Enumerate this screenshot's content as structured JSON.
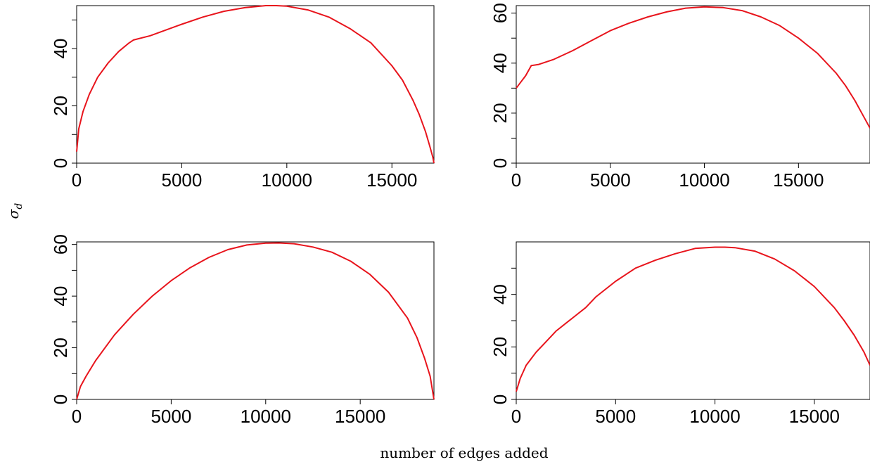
{
  "figure": {
    "ylabel": "σd",
    "ylabel_sub": "d",
    "xlabel": "number of edges added"
  },
  "series_color": "#e8141c",
  "chart_data": [
    {
      "type": "line",
      "panel": "top-left",
      "xlim": [
        0,
        17000
      ],
      "ylim": [
        0,
        55
      ],
      "x_ticks": [
        0,
        5000,
        10000,
        15000
      ],
      "y_ticks_labeled": [
        0,
        20,
        40
      ],
      "y_ticks_minor": [
        10,
        30,
        50
      ],
      "series": [
        {
          "x": [
            0,
            100,
            300,
            600,
            1000,
            1500,
            2000,
            2500,
            2700,
            3500,
            5000,
            6000,
            7000,
            8000,
            9000,
            9500,
            10000,
            11000,
            12000,
            13000,
            14000,
            15000,
            15500,
            16000,
            16300,
            16600,
            16800,
            16950,
            17000
          ],
          "y": [
            4,
            12,
            18,
            24,
            30,
            35,
            39,
            42,
            43,
            44.5,
            48.5,
            51,
            53,
            54.3,
            55,
            55,
            54.8,
            53.5,
            51,
            47,
            42,
            34,
            29,
            22,
            17,
            11,
            6,
            2,
            0
          ]
        }
      ]
    },
    {
      "type": "line",
      "panel": "top-right",
      "xlim": [
        0,
        18800
      ],
      "ylim": [
        0,
        63
      ],
      "x_ticks": [
        0,
        5000,
        10000,
        15000
      ],
      "y_ticks_labeled": [
        0,
        20,
        40,
        60
      ],
      "y_ticks_minor": [
        10,
        30,
        50
      ],
      "series": [
        {
          "x": [
            0,
            200,
            500,
            800,
            1200,
            2000,
            3000,
            4000,
            5000,
            6000,
            7000,
            8000,
            9000,
            10000,
            11000,
            12000,
            13000,
            14000,
            15000,
            16000,
            17000,
            17500,
            18000,
            18400,
            18800
          ],
          "y": [
            30,
            32,
            35,
            39,
            39.5,
            41.5,
            45,
            49,
            53,
            56,
            58.5,
            60.5,
            62,
            62.5,
            62.2,
            61,
            58.5,
            55,
            50,
            44,
            36,
            31,
            25,
            19.5,
            14
          ]
        }
      ]
    },
    {
      "type": "line",
      "panel": "bottom-left",
      "xlim": [
        0,
        18900
      ],
      "ylim": [
        0,
        61
      ],
      "x_ticks": [
        0,
        5000,
        10000,
        15000
      ],
      "y_ticks_labeled": [
        0,
        20,
        40,
        60
      ],
      "y_ticks_minor": [
        10,
        30,
        50
      ],
      "series": [
        {
          "x": [
            0,
            200,
            500,
            1000,
            2000,
            3000,
            4000,
            5000,
            6000,
            7000,
            8000,
            9000,
            10000,
            10700,
            11500,
            12500,
            13500,
            14500,
            15500,
            16500,
            17500,
            18000,
            18400,
            18700,
            18900
          ],
          "y": [
            0,
            5,
            9,
            15,
            25,
            33,
            40,
            46,
            51,
            55,
            58,
            59.8,
            60.5,
            60.6,
            60.3,
            59,
            57,
            53.5,
            48.5,
            41.5,
            31.5,
            24,
            16,
            9,
            0
          ]
        }
      ]
    },
    {
      "type": "line",
      "panel": "bottom-right",
      "xlim": [
        0,
        17800
      ],
      "ylim": [
        0,
        60
      ],
      "x_ticks": [
        0,
        5000,
        10000,
        15000
      ],
      "y_ticks_labeled": [
        0,
        20,
        40
      ],
      "y_ticks_minor": [
        10,
        30,
        50
      ],
      "series": [
        {
          "x": [
            0,
            200,
            500,
            1000,
            1500,
            2000,
            2500,
            3000,
            3500,
            4000,
            5000,
            6000,
            7000,
            8000,
            9000,
            10000,
            10500,
            11000,
            12000,
            13000,
            14000,
            15000,
            16000,
            16500,
            17000,
            17500,
            17800
          ],
          "y": [
            3,
            8,
            13,
            18,
            22,
            26,
            29,
            32,
            35,
            39,
            45,
            50,
            53,
            55.5,
            57.5,
            58,
            58,
            57.8,
            56.5,
            53.5,
            49,
            43,
            35,
            30,
            24.5,
            18,
            13
          ]
        }
      ]
    }
  ]
}
